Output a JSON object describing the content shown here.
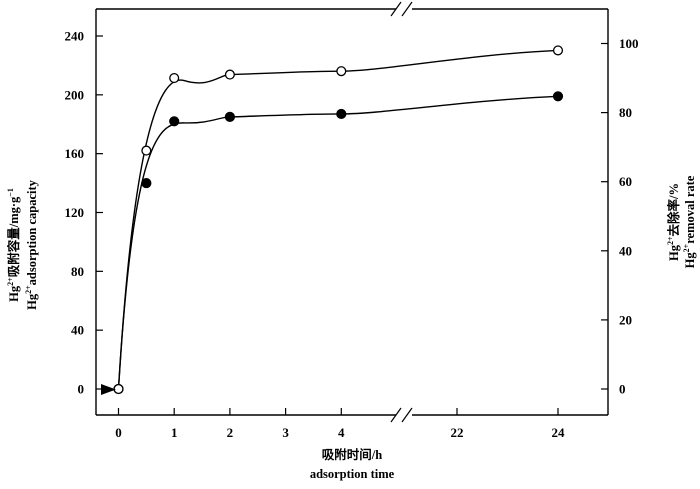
{
  "chart_data": {
    "type": "line",
    "x_tick_labels": [
      "0",
      "1",
      "2",
      "3",
      "4",
      "22",
      "24"
    ],
    "y_left_ticks": [
      0,
      40,
      80,
      120,
      160,
      200,
      240
    ],
    "y_right_ticks": [
      0,
      20,
      40,
      60,
      80,
      100
    ],
    "ylim_left": [
      0,
      240
    ],
    "ylim_right": [
      0,
      100
    ],
    "axis_break": "between 4 and 22 h (x-axis)",
    "xlabel": "吸附时间/h",
    "xlabel_en": "adsorption time",
    "ylabel_left": {
      "cn_prefix": "Hg",
      "cn_sup": "2+",
      "cn_text": "吸附容量/mg·g",
      "cn_sup2": "−1",
      "en_prefix": "Hg",
      "en_sup": "2+",
      "en_text": "adsorption capacity"
    },
    "ylabel_right": {
      "cn_prefix": "Hg",
      "cn_sup": "2+",
      "cn_text": "去除率/%",
      "en_prefix": "Hg",
      "en_sup": "2+",
      "en_text": "removal rate"
    },
    "series": [
      {
        "marker": "filled-circle",
        "axis": "left",
        "x": [
          0,
          0.5,
          1,
          2,
          4,
          24
        ],
        "y": [
          0,
          140,
          182,
          185,
          187,
          199
        ]
      },
      {
        "marker": "open-circle",
        "axis": "right",
        "x": [
          0,
          0.5,
          1,
          2,
          4,
          24
        ],
        "y": [
          0,
          69,
          90,
          91,
          92,
          98
        ]
      }
    ],
    "start_marker": "arrow pointing to origin",
    "grid": false,
    "legend": "none"
  }
}
